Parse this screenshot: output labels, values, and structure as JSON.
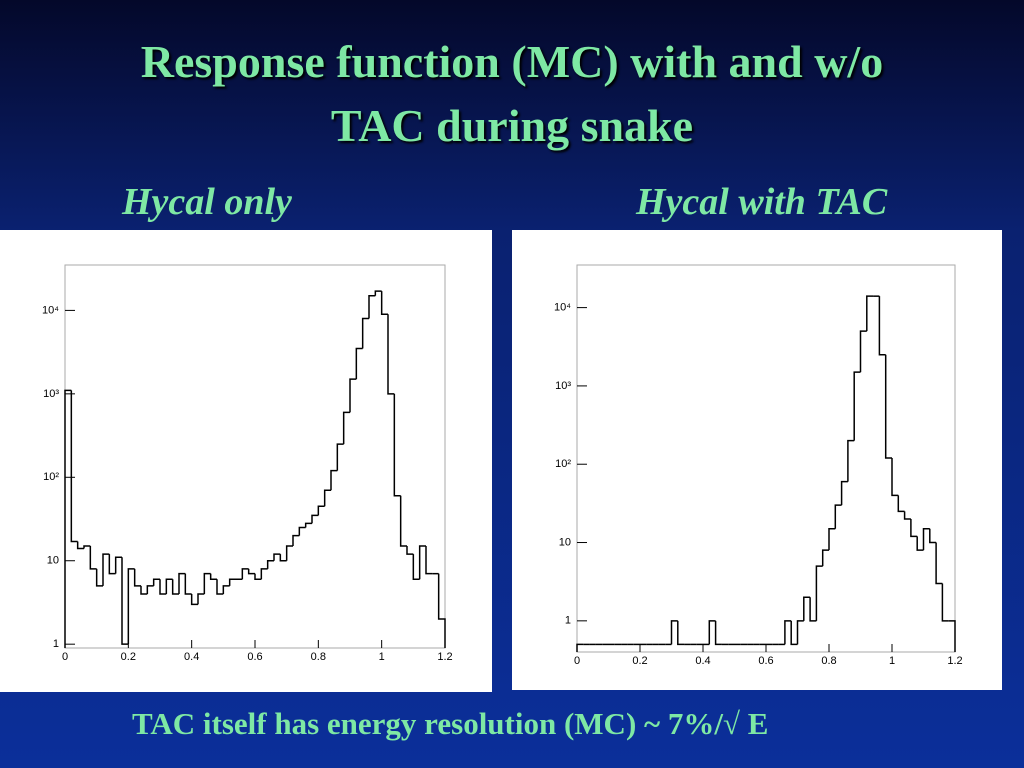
{
  "slide_title": "Response function (MC) with and w/o TAC during snake",
  "footer": "TAC itself has energy resolution (MC) ~ 7%/√ E",
  "chart_data": [
    {
      "type": "histogram",
      "title": "Hycal only",
      "color": "#000000",
      "log_y": true,
      "bins": [
        0,
        0.02,
        0.04,
        0.06,
        0.08,
        0.1,
        0.12,
        0.14,
        0.16,
        0.18,
        0.2,
        0.22,
        0.24,
        0.26,
        0.28,
        0.3,
        0.32,
        0.34,
        0.36,
        0.38,
        0.4,
        0.42,
        0.44,
        0.46,
        0.48,
        0.5,
        0.52,
        0.54,
        0.56,
        0.58,
        0.6,
        0.62,
        0.64,
        0.66,
        0.68,
        0.7,
        0.72,
        0.74,
        0.76,
        0.78,
        0.8,
        0.82,
        0.84,
        0.86,
        0.88,
        0.9,
        0.92,
        0.94,
        0.96,
        0.98,
        1,
        1.02,
        1.04,
        1.06,
        1.08,
        1.1,
        1.12,
        1.14,
        1.16,
        1.18,
        1.2
      ],
      "values": [
        1100,
        17,
        14,
        15,
        8,
        5,
        12,
        7,
        11,
        1,
        8,
        5,
        4,
        5,
        6,
        4,
        6,
        4,
        7,
        4,
        3,
        4,
        7,
        6,
        4,
        5,
        6,
        6,
        8,
        7,
        6,
        8,
        10,
        12,
        10,
        15,
        20,
        25,
        28,
        35,
        45,
        70,
        120,
        250,
        600,
        1500,
        3500,
        8000,
        15000,
        17000,
        9000,
        1000,
        60,
        15,
        12,
        6,
        15,
        7,
        7,
        2
      ],
      "xlim": [
        0,
        1.2
      ],
      "xticks": [
        0,
        0.2,
        0.4,
        0.6,
        0.8,
        1,
        1.2
      ],
      "ylim": [
        0.9,
        35000
      ],
      "yticks": [
        1,
        10,
        {
          "value": 100,
          "label": "10²"
        },
        {
          "value": 1000,
          "label": "10³"
        },
        {
          "value": 10000,
          "label": "10⁴"
        }
      ]
    },
    {
      "type": "histogram",
      "title": "Hycal with TAC",
      "color": "#000000",
      "log_y": true,
      "bins": [
        0,
        0.02,
        0.04,
        0.06,
        0.08,
        0.1,
        0.12,
        0.14,
        0.16,
        0.18,
        0.2,
        0.22,
        0.24,
        0.26,
        0.28,
        0.3,
        0.32,
        0.34,
        0.36,
        0.38,
        0.4,
        0.42,
        0.44,
        0.46,
        0.48,
        0.5,
        0.52,
        0.54,
        0.56,
        0.58,
        0.6,
        0.62,
        0.64,
        0.66,
        0.68,
        0.7,
        0.72,
        0.74,
        0.76,
        0.78,
        0.8,
        0.82,
        0.84,
        0.86,
        0.88,
        0.9,
        0.92,
        0.94,
        0.96,
        0.98,
        1,
        1.02,
        1.04,
        1.06,
        1.08,
        1.1,
        1.12,
        1.14,
        1.16,
        1.18,
        1.2
      ],
      "values": [
        0.5,
        0.5,
        0.5,
        0.5,
        0.5,
        0.5,
        0.5,
        0.5,
        0.5,
        0.5,
        0.5,
        0.5,
        0.5,
        0.5,
        0.5,
        1,
        0.5,
        0.5,
        0.5,
        0.5,
        0.5,
        1,
        0.5,
        0.5,
        0.5,
        0.5,
        0.5,
        0.5,
        0.5,
        0.5,
        0.5,
        0.5,
        0.5,
        1,
        0.5,
        1,
        2,
        1,
        5,
        8,
        15,
        30,
        60,
        200,
        1500,
        5000,
        14000,
        14000,
        2500,
        120,
        40,
        25,
        20,
        12,
        8,
        15,
        10,
        3,
        1,
        1
      ],
      "xlim": [
        0,
        1.2
      ],
      "xticks": [
        0,
        0.2,
        0.4,
        0.6,
        0.8,
        1,
        1.2
      ],
      "ylim": [
        0.4,
        35000
      ],
      "yticks": [
        1,
        10,
        {
          "value": 100,
          "label": "10²"
        },
        {
          "value": 1000,
          "label": "10³"
        },
        {
          "value": 10000,
          "label": "10⁴"
        }
      ]
    }
  ]
}
